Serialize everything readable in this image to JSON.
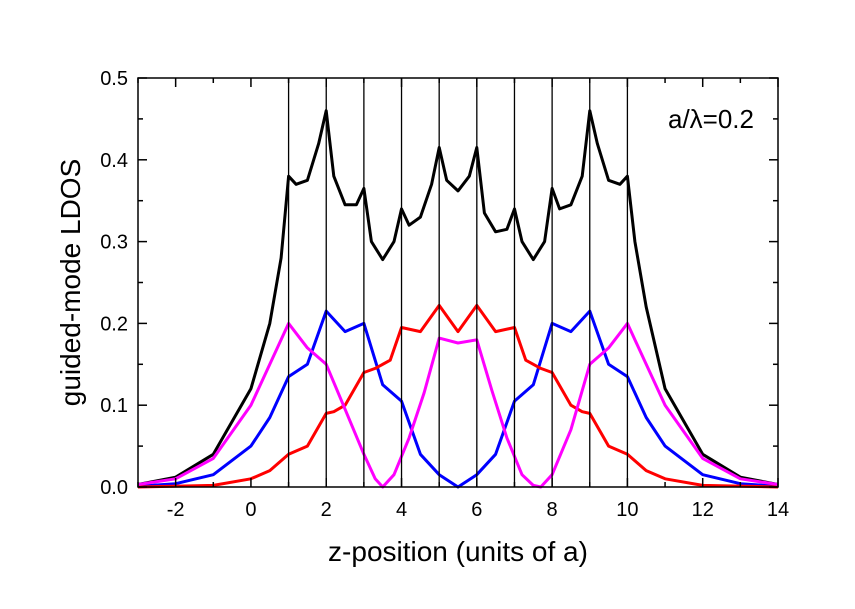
{
  "chart_data": {
    "type": "line",
    "xlabel": "z-position (units of a)",
    "ylabel": "guided-mode LDOS",
    "annotation": "a/λ=0.2",
    "xlim": [
      -3,
      14
    ],
    "ylim": [
      0,
      0.5
    ],
    "xticks": [
      -2,
      0,
      2,
      4,
      6,
      8,
      10,
      12,
      14
    ],
    "xtick_labels": [
      "-2",
      "0",
      "2",
      "4",
      "6",
      "8",
      "10",
      "12",
      "14"
    ],
    "yticks": [
      0.0,
      0.1,
      0.2,
      0.3,
      0.4,
      0.5
    ],
    "ytick_labels": [
      "0.0",
      "0.1",
      "0.2",
      "0.3",
      "0.4",
      "0.5"
    ],
    "vertical_lines": [
      1,
      2,
      3,
      4,
      5,
      6,
      7,
      8,
      9,
      10
    ],
    "grid": false,
    "series": [
      {
        "color": "#000000",
        "x": [
          -3,
          -2,
          -1,
          0,
          0.5,
          0.8,
          1,
          1.2,
          1.5,
          1.8,
          2,
          2.2,
          2.5,
          2.8,
          3,
          3.2,
          3.5,
          3.8,
          4,
          4.2,
          4.5,
          4.8,
          5,
          5.2,
          5.5,
          5.8,
          6,
          6.2,
          6.5,
          6.8,
          7,
          7.2,
          7.5,
          7.8,
          8,
          8.2,
          8.5,
          8.8,
          9,
          9.2,
          9.5,
          9.8,
          10,
          10.2,
          10.5,
          11,
          12,
          13,
          14
        ],
        "y": [
          0.003,
          0.012,
          0.04,
          0.12,
          0.2,
          0.28,
          0.38,
          0.37,
          0.375,
          0.42,
          0.46,
          0.38,
          0.345,
          0.345,
          0.365,
          0.3,
          0.278,
          0.3,
          0.34,
          0.32,
          0.33,
          0.37,
          0.415,
          0.375,
          0.362,
          0.38,
          0.415,
          0.335,
          0.312,
          0.315,
          0.34,
          0.3,
          0.278,
          0.3,
          0.365,
          0.34,
          0.345,
          0.38,
          0.46,
          0.42,
          0.375,
          0.37,
          0.38,
          0.3,
          0.22,
          0.12,
          0.04,
          0.012,
          0.003
        ]
      },
      {
        "color": "#0000ff",
        "x": [
          -3,
          -2,
          -1,
          0,
          0.5,
          1,
          1.5,
          2,
          2.5,
          3,
          3.5,
          4,
          4.5,
          5,
          5.5,
          6,
          6.5,
          7,
          7.5,
          8,
          8.5,
          9,
          9.5,
          10,
          10.5,
          11,
          12,
          13,
          14
        ],
        "y": [
          0.001,
          0.004,
          0.015,
          0.05,
          0.085,
          0.135,
          0.15,
          0.215,
          0.19,
          0.2,
          0.125,
          0.105,
          0.04,
          0.015,
          0.0,
          0.015,
          0.04,
          0.105,
          0.125,
          0.2,
          0.19,
          0.215,
          0.15,
          0.135,
          0.085,
          0.05,
          0.015,
          0.004,
          0.001
        ]
      },
      {
        "color": "#ff0000",
        "x": [
          -3,
          -1,
          0,
          0.5,
          1,
          1.5,
          2,
          2.2,
          2.5,
          3,
          3.3,
          3.7,
          4,
          4.5,
          5,
          5.5,
          6,
          6.5,
          7,
          7.3,
          7.7,
          8,
          8.5,
          8.8,
          9,
          9.5,
          10,
          10.5,
          11,
          12,
          14
        ],
        "y": [
          0.0,
          0.002,
          0.01,
          0.02,
          0.04,
          0.05,
          0.09,
          0.092,
          0.1,
          0.14,
          0.145,
          0.155,
          0.195,
          0.19,
          0.222,
          0.19,
          0.222,
          0.19,
          0.195,
          0.155,
          0.145,
          0.14,
          0.1,
          0.092,
          0.09,
          0.05,
          0.04,
          0.02,
          0.01,
          0.002,
          0.0
        ]
      },
      {
        "color": "#ff00ff",
        "x": [
          -3,
          -2,
          -1,
          0,
          0.5,
          1,
          1.5,
          2,
          2.5,
          3,
          3.3,
          3.5,
          3.8,
          4.2,
          4.6,
          5,
          5.5,
          6,
          6.4,
          6.8,
          7.2,
          7.5,
          7.7,
          8.0,
          8.5,
          9,
          9.5,
          10,
          10.5,
          11,
          12,
          13,
          14
        ],
        "y": [
          0.003,
          0.01,
          0.035,
          0.1,
          0.15,
          0.2,
          0.17,
          0.15,
          0.095,
          0.04,
          0.01,
          0.0,
          0.015,
          0.06,
          0.115,
          0.182,
          0.176,
          0.18,
          0.118,
          0.06,
          0.015,
          0.002,
          0.0,
          0.015,
          0.07,
          0.15,
          0.17,
          0.2,
          0.15,
          0.1,
          0.035,
          0.01,
          0.003
        ]
      }
    ]
  }
}
